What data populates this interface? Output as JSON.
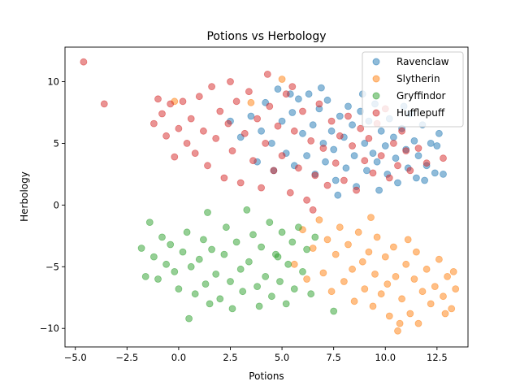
{
  "chart_data": {
    "type": "scatter",
    "title": "Potions vs Herbology",
    "xlabel": "Potions",
    "ylabel": "Herbology",
    "xlim": [
      -5.5,
      14.0
    ],
    "ylim": [
      -11.5,
      12.8
    ],
    "xticks": [
      -5.0,
      -2.5,
      0.0,
      2.5,
      5.0,
      7.5,
      10.0,
      12.5
    ],
    "xtick_labels": [
      "−5.0",
      "−2.5",
      "0.0",
      "2.5",
      "5.0",
      "7.5",
      "10.0",
      "12.5"
    ],
    "yticks": [
      -10,
      -5,
      0,
      5,
      10
    ],
    "ytick_labels": [
      "−10",
      "−5",
      "0",
      "5",
      "10"
    ],
    "grid": false,
    "legend_position": "top-right",
    "series": [
      {
        "name": "Ravenclaw",
        "color": "#1f77b4",
        "points": [
          [
            2.5,
            6.8
          ],
          [
            3.0,
            5.5
          ],
          [
            3.5,
            7.2
          ],
          [
            4.0,
            6.0
          ],
          [
            4.2,
            8.3
          ],
          [
            4.5,
            5.0
          ],
          [
            4.8,
            9.4
          ],
          [
            5.0,
            6.8
          ],
          [
            5.2,
            4.2
          ],
          [
            5.5,
            7.5
          ],
          [
            5.6,
            3.2
          ],
          [
            5.8,
            8.6
          ],
          [
            6.0,
            5.8
          ],
          [
            6.2,
            4.0
          ],
          [
            6.3,
            9.0
          ],
          [
            6.5,
            6.5
          ],
          [
            6.6,
            2.5
          ],
          [
            6.8,
            7.8
          ],
          [
            7.0,
            5.0
          ],
          [
            7.1,
            3.5
          ],
          [
            7.2,
            8.5
          ],
          [
            7.4,
            6.0
          ],
          [
            7.5,
            4.5
          ],
          [
            7.6,
            2.0
          ],
          [
            7.8,
            7.2
          ],
          [
            8.0,
            5.5
          ],
          [
            8.1,
            3.0
          ],
          [
            8.2,
            8.0
          ],
          [
            8.4,
            6.5
          ],
          [
            8.5,
            4.0
          ],
          [
            8.6,
            1.5
          ],
          [
            8.8,
            7.6
          ],
          [
            9.0,
            5.0
          ],
          [
            9.1,
            2.8
          ],
          [
            9.2,
            6.8
          ],
          [
            9.4,
            4.2
          ],
          [
            9.5,
            8.2
          ],
          [
            9.6,
            3.5
          ],
          [
            9.8,
            6.0
          ],
          [
            10.0,
            4.8
          ],
          [
            10.1,
            2.5
          ],
          [
            10.2,
            7.0
          ],
          [
            10.4,
            5.5
          ],
          [
            10.5,
            3.8
          ],
          [
            10.6,
            1.8
          ],
          [
            10.8,
            6.2
          ],
          [
            11.0,
            4.5
          ],
          [
            11.1,
            3.0
          ],
          [
            11.2,
            7.4
          ],
          [
            11.4,
            5.2
          ],
          [
            11.5,
            2.2
          ],
          [
            11.6,
            4.0
          ],
          [
            11.8,
            6.5
          ],
          [
            12.0,
            3.2
          ],
          [
            12.2,
            5.0
          ],
          [
            12.4,
            2.6
          ],
          [
            12.5,
            4.8
          ],
          [
            12.8,
            2.5
          ],
          [
            3.8,
            3.5
          ],
          [
            4.6,
            2.8
          ],
          [
            5.4,
            9.0
          ],
          [
            6.9,
            9.5
          ],
          [
            7.7,
            0.8
          ],
          [
            8.9,
            9.0
          ],
          [
            9.7,
            1.2
          ],
          [
            10.9,
            8.0
          ],
          [
            12.6,
            5.8
          ],
          [
            11.9,
            2.0
          ]
        ]
      },
      {
        "name": "Slytherin",
        "color": "#ff7f0e",
        "points": [
          [
            5.6,
            -4.8
          ],
          [
            6.0,
            -2.0
          ],
          [
            6.2,
            -6.0
          ],
          [
            6.5,
            -3.5
          ],
          [
            6.8,
            -1.2
          ],
          [
            7.0,
            -5.5
          ],
          [
            7.2,
            -2.8
          ],
          [
            7.4,
            -7.0
          ],
          [
            7.6,
            -4.0
          ],
          [
            7.8,
            -1.8
          ],
          [
            8.0,
            -6.2
          ],
          [
            8.2,
            -3.2
          ],
          [
            8.4,
            -5.2
          ],
          [
            8.5,
            -7.8
          ],
          [
            8.7,
            -2.2
          ],
          [
            8.9,
            -4.6
          ],
          [
            9.0,
            -6.8
          ],
          [
            9.2,
            -3.8
          ],
          [
            9.4,
            -8.2
          ],
          [
            9.5,
            -5.6
          ],
          [
            9.6,
            -2.6
          ],
          [
            9.8,
            -7.2
          ],
          [
            10.0,
            -4.2
          ],
          [
            10.1,
            -6.4
          ],
          [
            10.2,
            -9.0
          ],
          [
            10.4,
            -3.4
          ],
          [
            10.5,
            -5.8
          ],
          [
            10.6,
            -10.2
          ],
          [
            10.8,
            -7.6
          ],
          [
            11.0,
            -4.8
          ],
          [
            11.1,
            -2.8
          ],
          [
            11.2,
            -8.8
          ],
          [
            11.4,
            -6.0
          ],
          [
            11.5,
            -3.8
          ],
          [
            11.6,
            -9.6
          ],
          [
            11.8,
            -7.0
          ],
          [
            12.0,
            -5.2
          ],
          [
            12.2,
            -8.0
          ],
          [
            12.4,
            -6.6
          ],
          [
            12.6,
            -4.4
          ],
          [
            12.8,
            -7.4
          ],
          [
            13.0,
            -5.8
          ],
          [
            13.2,
            -8.4
          ],
          [
            13.4,
            -6.8
          ],
          [
            13.3,
            -5.4
          ],
          [
            3.5,
            8.3
          ],
          [
            5.0,
            10.2
          ],
          [
            -0.2,
            8.4
          ],
          [
            9.3,
            -1.0
          ],
          [
            10.7,
            -9.6
          ],
          [
            12.9,
            -8.8
          ]
        ]
      },
      {
        "name": "Gryffindor",
        "color": "#2ca02c",
        "points": [
          [
            -1.8,
            -3.5
          ],
          [
            -1.6,
            -5.8
          ],
          [
            -1.4,
            -1.4
          ],
          [
            -1.2,
            -4.2
          ],
          [
            -1.0,
            -6.0
          ],
          [
            -0.8,
            -2.6
          ],
          [
            -0.6,
            -4.8
          ],
          [
            -0.4,
            -3.2
          ],
          [
            -0.2,
            -5.4
          ],
          [
            0.0,
            -6.8
          ],
          [
            0.2,
            -3.8
          ],
          [
            0.4,
            -2.2
          ],
          [
            0.5,
            -9.2
          ],
          [
            0.6,
            -5.0
          ],
          [
            0.8,
            -7.2
          ],
          [
            1.0,
            -4.4
          ],
          [
            1.2,
            -2.8
          ],
          [
            1.3,
            -6.4
          ],
          [
            1.5,
            -8.0
          ],
          [
            1.6,
            -3.6
          ],
          [
            1.8,
            -5.6
          ],
          [
            2.0,
            -7.6
          ],
          [
            2.2,
            -4.0
          ],
          [
            2.3,
            -1.8
          ],
          [
            2.5,
            -6.2
          ],
          [
            2.6,
            -8.4
          ],
          [
            2.8,
            -3.0
          ],
          [
            3.0,
            -5.2
          ],
          [
            3.1,
            -7.0
          ],
          [
            3.3,
            -0.4
          ],
          [
            3.4,
            -4.6
          ],
          [
            3.6,
            -2.4
          ],
          [
            3.8,
            -6.6
          ],
          [
            3.9,
            -8.2
          ],
          [
            4.0,
            -3.4
          ],
          [
            4.2,
            -5.8
          ],
          [
            4.4,
            -1.4
          ],
          [
            4.5,
            -7.4
          ],
          [
            4.7,
            -4.0
          ],
          [
            4.9,
            -6.2
          ],
          [
            5.0,
            -2.2
          ],
          [
            5.2,
            -8.0
          ],
          [
            5.3,
            -4.8
          ],
          [
            5.5,
            -3.0
          ],
          [
            5.6,
            -6.8
          ],
          [
            5.8,
            -1.8
          ],
          [
            6.0,
            -5.4
          ],
          [
            6.2,
            -3.6
          ],
          [
            6.4,
            -7.2
          ],
          [
            6.6,
            -2.6
          ],
          [
            7.5,
            -8.6
          ],
          [
            1.4,
            -0.6
          ],
          [
            4.8,
            -4.2
          ]
        ]
      },
      {
        "name": "Hufflepuff",
        "color": "#d62728",
        "points": [
          [
            -4.6,
            11.6
          ],
          [
            -3.6,
            8.2
          ],
          [
            -1.2,
            6.6
          ],
          [
            -1.0,
            8.6
          ],
          [
            -0.8,
            7.4
          ],
          [
            -0.6,
            5.6
          ],
          [
            -0.4,
            8.2
          ],
          [
            -0.2,
            3.9
          ],
          [
            0.0,
            6.2
          ],
          [
            0.2,
            8.4
          ],
          [
            0.4,
            5.0
          ],
          [
            0.6,
            7.0
          ],
          [
            0.8,
            4.2
          ],
          [
            1.0,
            8.8
          ],
          [
            1.2,
            6.0
          ],
          [
            1.4,
            3.2
          ],
          [
            1.6,
            9.6
          ],
          [
            1.8,
            5.4
          ],
          [
            2.0,
            7.6
          ],
          [
            2.2,
            2.2
          ],
          [
            2.4,
            6.6
          ],
          [
            2.6,
            4.4
          ],
          [
            2.8,
            8.4
          ],
          [
            3.0,
            1.8
          ],
          [
            3.2,
            5.8
          ],
          [
            3.4,
            9.2
          ],
          [
            3.6,
            3.6
          ],
          [
            3.8,
            7.0
          ],
          [
            4.0,
            1.4
          ],
          [
            4.2,
            5.0
          ],
          [
            4.4,
            8.0
          ],
          [
            4.6,
            2.8
          ],
          [
            4.8,
            6.4
          ],
          [
            5.0,
            4.0
          ],
          [
            5.2,
            9.0
          ],
          [
            5.4,
            1.0
          ],
          [
            5.6,
            6.0
          ],
          [
            5.8,
            3.0
          ],
          [
            6.0,
            7.6
          ],
          [
            6.2,
            0.4
          ],
          [
            6.4,
            5.2
          ],
          [
            6.6,
            2.4
          ],
          [
            6.8,
            8.2
          ],
          [
            7.0,
            4.6
          ],
          [
            7.2,
            1.6
          ],
          [
            7.4,
            6.8
          ],
          [
            7.6,
            3.4
          ],
          [
            7.8,
            5.6
          ],
          [
            8.0,
            2.0
          ],
          [
            8.2,
            7.2
          ],
          [
            8.4,
            4.8
          ],
          [
            8.6,
            1.2
          ],
          [
            8.8,
            6.2
          ],
          [
            9.0,
            3.6
          ],
          [
            9.2,
            5.4
          ],
          [
            9.4,
            2.6
          ],
          [
            9.6,
            6.6
          ],
          [
            9.8,
            4.0
          ],
          [
            10.0,
            7.8
          ],
          [
            10.2,
            2.2
          ],
          [
            10.4,
            5.0
          ],
          [
            10.6,
            3.2
          ],
          [
            10.8,
            6.0
          ],
          [
            11.0,
            4.4
          ],
          [
            11.2,
            2.8
          ],
          [
            11.6,
            4.6
          ],
          [
            12.0,
            3.4
          ],
          [
            12.8,
            3.8
          ],
          [
            6.5,
            -0.4
          ],
          [
            5.5,
            9.6
          ],
          [
            2.5,
            10.0
          ],
          [
            4.3,
            10.6
          ]
        ]
      }
    ]
  }
}
